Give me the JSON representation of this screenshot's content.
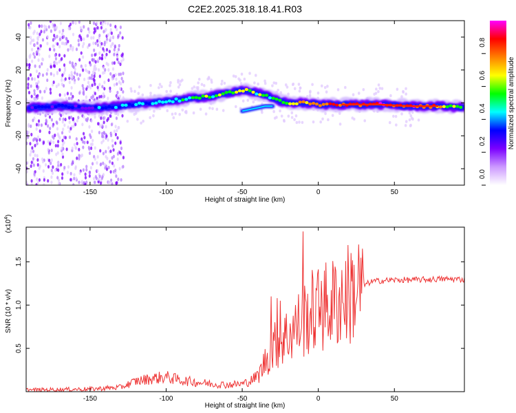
{
  "chart_data": [
    {
      "type": "heatmap",
      "title": "C2E2.2025.318.18.41.R03",
      "xlabel": "Height of straight line (km)",
      "ylabel": "Frequency (Hz)",
      "xlim": [
        -192,
        96
      ],
      "ylim": [
        -50,
        50
      ],
      "x_ticks": [
        "-150",
        "-100",
        "-50",
        "0",
        "50"
      ],
      "y_ticks": [
        "40",
        "20",
        "0",
        "-20",
        "-40"
      ],
      "colorbar": {
        "label": "Normalized spectral amplitude",
        "range": [
          0,
          1
        ],
        "ticks": [
          "0.0",
          "0.2",
          "0.4",
          "0.6",
          "0.8"
        ],
        "colors": [
          "#ffffff",
          "#cc99ff",
          "#7b00ff",
          "#0000ff",
          "#00ffff",
          "#00ff00",
          "#ffff00",
          "#ff8000",
          "#ff0000",
          "#ff00ff"
        ]
      },
      "ridge": {
        "x": [
          -190,
          -170,
          -150,
          -130,
          -110,
          -90,
          -70,
          -55,
          -50,
          -40,
          -30,
          -25,
          -20,
          -10,
          0,
          20,
          40,
          60,
          80,
          96
        ],
        "y": [
          -3,
          -2,
          -3,
          -2,
          0,
          2,
          4,
          7,
          8,
          6,
          3,
          1,
          0,
          0,
          -1,
          -1,
          -1,
          -2,
          -2,
          -3
        ],
        "amplitude": [
          0.3,
          0.35,
          0.3,
          0.4,
          0.45,
          0.5,
          0.55,
          0.6,
          0.6,
          0.55,
          0.5,
          0.55,
          0.65,
          0.7,
          0.8,
          0.85,
          0.9,
          0.9,
          0.75,
          0.5
        ]
      },
      "secondary_branch": {
        "x": [
          -50,
          -45,
          -40,
          -35,
          -30
        ],
        "y": [
          -5,
          -4,
          -3,
          -2,
          -2
        ]
      },
      "noise_region_x": [
        -192,
        -128
      ]
    },
    {
      "type": "line",
      "xlabel": "Height of straight line (km)",
      "ylabel": "SNR (10 * v/v)",
      "y_multiplier": "(x10",
      "y_multiplier_exp": "4",
      "y_multiplier_close": ")",
      "xlim": [
        -192,
        96
      ],
      "ylim": [
        0,
        19000
      ],
      "x_ticks": [
        "-150",
        "-100",
        "-50",
        "0",
        "50"
      ],
      "y_ticks": [
        "1.5",
        "1.0",
        "0.5"
      ],
      "color": "#ee3333",
      "series": [
        {
          "x": [
            -192,
            -170,
            -150,
            -130,
            -120,
            -110,
            -100,
            -90,
            -80,
            -70,
            -60,
            -50,
            -45,
            -40,
            -37,
            -35,
            -32,
            -30,
            -28,
            -25,
            -22,
            -20,
            -18,
            -15,
            -12,
            -10,
            -8,
            -5,
            -2,
            0,
            5,
            10,
            15,
            20,
            25,
            30,
            35,
            40,
            50,
            60,
            70,
            80,
            90,
            96
          ],
          "y": [
            200,
            250,
            300,
            500,
            1200,
            1500,
            1700,
            1300,
            1100,
            900,
            800,
            900,
            1200,
            1800,
            2600,
            3500,
            4500,
            5000,
            5400,
            5800,
            6300,
            6500,
            7000,
            7400,
            7800,
            8300,
            8600,
            9100,
            9300,
            9500,
            9800,
            10200,
            10800,
            11300,
            11800,
            12300,
            12700,
            12800,
            12900,
            12900,
            12950,
            13000,
            13000,
            12950
          ],
          "spikes": [
            {
              "x": -31,
              "y": 11000
            },
            {
              "x": -27,
              "y": 10800
            },
            {
              "x": -25,
              "y": 10500
            },
            {
              "x": -10,
              "y": 18500
            },
            {
              "x": 2,
              "y": 12800
            },
            {
              "x": 10,
              "y": 13700
            },
            {
              "x": 20,
              "y": 12400
            }
          ]
        }
      ]
    }
  ]
}
